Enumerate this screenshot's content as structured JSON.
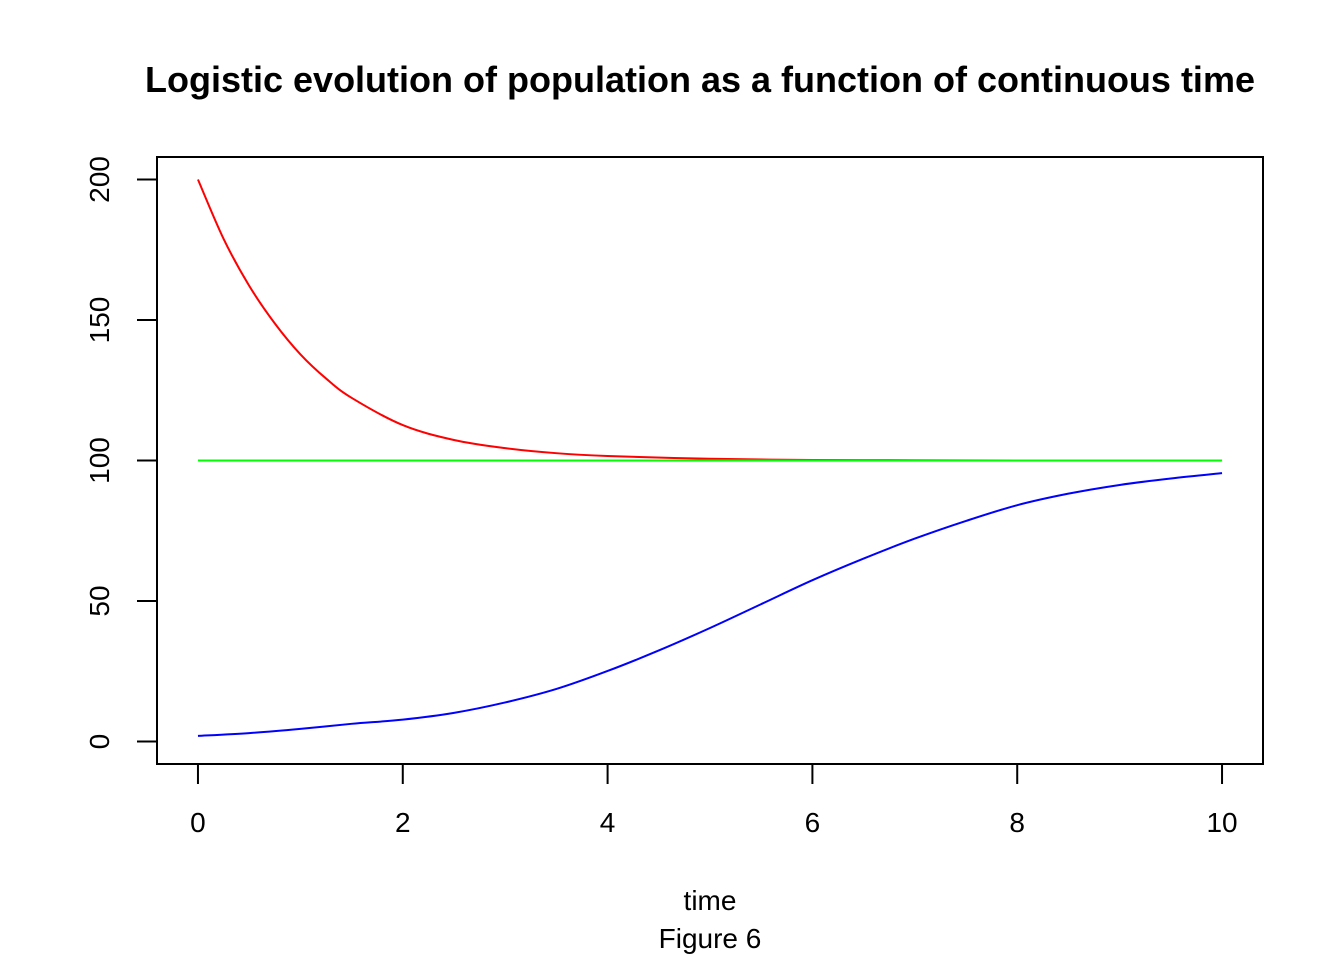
{
  "chart_data": {
    "type": "line",
    "title": "Logistic evolution of population as a function of continuous time",
    "xlabel": "time",
    "ylabel": "",
    "caption": "Figure 6",
    "xlim": [
      -0.4,
      10.4
    ],
    "ylim": [
      -8,
      208
    ],
    "xticks": [
      0,
      2,
      4,
      6,
      8,
      10
    ],
    "yticks": [
      0,
      50,
      100,
      150,
      200
    ],
    "grid": false,
    "series": [
      {
        "color": "#ff0000",
        "x": [
          0,
          0.25,
          0.5,
          0.75,
          1,
          1.25,
          1.5,
          2,
          2.5,
          3,
          3.5,
          4,
          5,
          6,
          7,
          8,
          9,
          10
        ],
        "y": [
          200,
          178.9,
          162.2,
          148.8,
          137.8,
          129.2,
          122.3,
          112.6,
          107.3,
          104.4,
          102.6,
          101.6,
          100.6,
          100.2,
          100.1,
          100.0,
          100.0,
          100.0
        ]
      },
      {
        "color": "#00ff00",
        "x": [
          0,
          10
        ],
        "y": [
          100,
          100
        ]
      },
      {
        "color": "#0000ff",
        "x": [
          0,
          0.5,
          1,
          1.5,
          2,
          2.5,
          3,
          3.5,
          4,
          4.5,
          5,
          5.5,
          6,
          6.5,
          7,
          7.5,
          8,
          8.5,
          9,
          9.5,
          10
        ],
        "y": [
          2.0,
          3.0,
          4.5,
          6.3,
          7.8,
          10.2,
          13.9,
          18.7,
          25.1,
          32.4,
          40.4,
          48.9,
          57.4,
          65.1,
          72.2,
          78.5,
          84.1,
          88.2,
          91.3,
          93.6,
          95.5
        ]
      }
    ]
  }
}
